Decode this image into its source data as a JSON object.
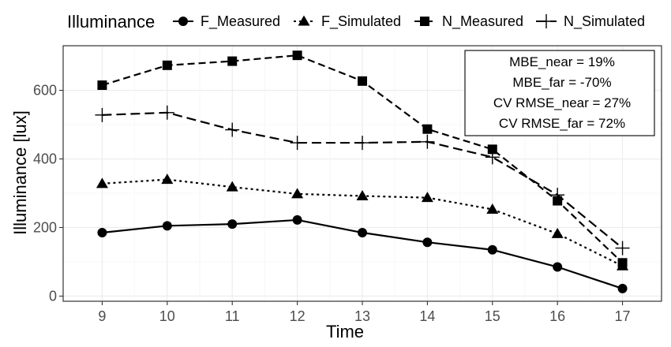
{
  "chart_data": {
    "type": "line",
    "xlabel": "Time",
    "ylabel": "Illuminance [lux]",
    "x": [
      9,
      10,
      11,
      12,
      13,
      14,
      15,
      16,
      17
    ],
    "xlim": [
      8.4,
      17.6
    ],
    "ylim": [
      -15,
      730
    ],
    "yticks": [
      0,
      200,
      400,
      600
    ],
    "grid": true,
    "legend": {
      "title": "Illuminance",
      "position": "top",
      "entries": [
        "F_Measured",
        "F_Simulated",
        "N_Measured",
        "N_Simulated"
      ]
    },
    "series": [
      {
        "name": "F_Measured",
        "marker": "circle",
        "linestyle": "solid",
        "values": [
          185,
          205,
          210,
          222,
          185,
          157,
          135,
          85,
          22
        ]
      },
      {
        "name": "F_Simulated",
        "marker": "triangle",
        "linestyle": "dotted",
        "values": [
          328,
          340,
          318,
          298,
          292,
          287,
          253,
          182,
          88
        ]
      },
      {
        "name": "N_Measured",
        "marker": "square",
        "linestyle": "dashed",
        "values": [
          615,
          673,
          685,
          702,
          627,
          487,
          428,
          278,
          97
        ]
      },
      {
        "name": "N_Simulated",
        "marker": "plus",
        "linestyle": "longdash",
        "values": [
          528,
          535,
          485,
          447,
          447,
          450,
          405,
          295,
          140
        ]
      }
    ],
    "annotations": [
      "MBE_near = 19%",
      "MBE_far = -70%",
      "CV RMSE_near = 27%",
      "CV RMSE_far = 72%"
    ]
  }
}
